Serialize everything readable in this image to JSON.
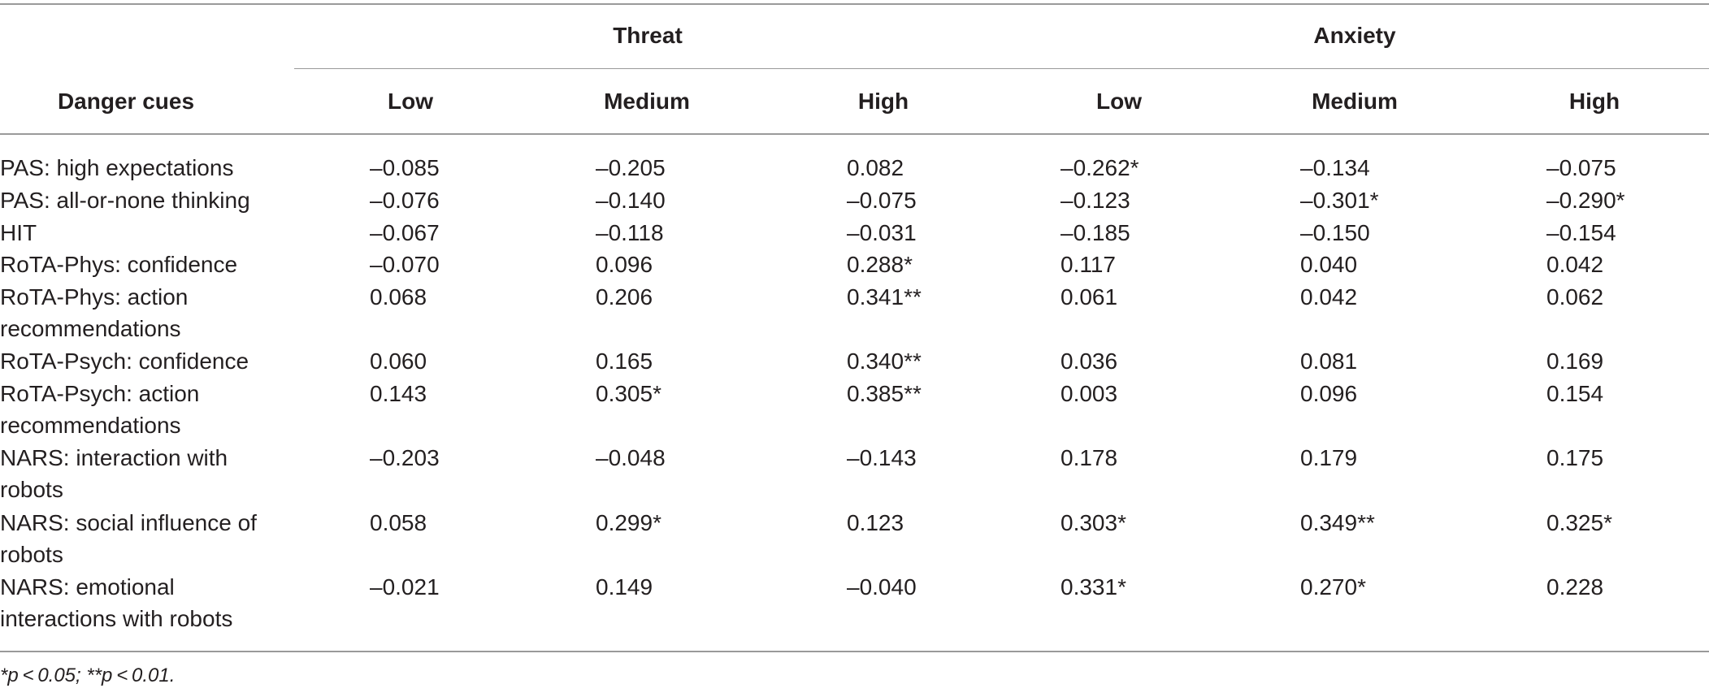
{
  "table": {
    "stub_header": "Danger cues",
    "groups": [
      "Threat",
      "Anxiety"
    ],
    "columns": [
      "Low",
      "Medium",
      "High",
      "Low",
      "Medium",
      "High"
    ],
    "rows": [
      {
        "label": "PAS: high expectations",
        "values": [
          "–0.085",
          "–0.205",
          "0.082",
          "–0.262*",
          "–0.134",
          "–0.075"
        ]
      },
      {
        "label": "PAS: all-or-none thinking",
        "values": [
          "–0.076",
          "–0.140",
          "–0.075",
          "–0.123",
          "–0.301*",
          "–0.290*"
        ]
      },
      {
        "label": "HIT",
        "values": [
          "–0.067",
          "–0.118",
          "–0.031",
          "–0.185",
          "–0.150",
          "–0.154"
        ]
      },
      {
        "label": "RoTA-Phys: confidence",
        "values": [
          "–0.070",
          "0.096",
          "0.288*",
          "0.117",
          "0.040",
          "0.042"
        ]
      },
      {
        "label": "RoTA-Phys: action recommendations",
        "values": [
          "0.068",
          "0.206",
          "0.341**",
          "0.061",
          "0.042",
          "0.062"
        ]
      },
      {
        "label": "RoTA-Psych: confidence",
        "values": [
          "0.060",
          "0.165",
          "0.340**",
          "0.036",
          "0.081",
          "0.169"
        ]
      },
      {
        "label": "RoTA-Psych: action recommendations",
        "values": [
          "0.143",
          "0.305*",
          "0.385**",
          "0.003",
          "0.096",
          "0.154"
        ]
      },
      {
        "label": "NARS: interaction with robots",
        "values": [
          "–0.203",
          "–0.048",
          "–0.143",
          "0.178",
          "0.179",
          "0.175"
        ]
      },
      {
        "label": "NARS: social influence of robots",
        "values": [
          "0.058",
          "0.299*",
          "0.123",
          "0.303*",
          "0.349**",
          "0.325*"
        ]
      },
      {
        "label": "NARS: emotional interactions with robots",
        "values": [
          "–0.021",
          "0.149",
          "–0.040",
          "0.331*",
          "0.270*",
          "0.228"
        ]
      }
    ],
    "footnote": "*p < 0.05; **p < 0.01."
  }
}
